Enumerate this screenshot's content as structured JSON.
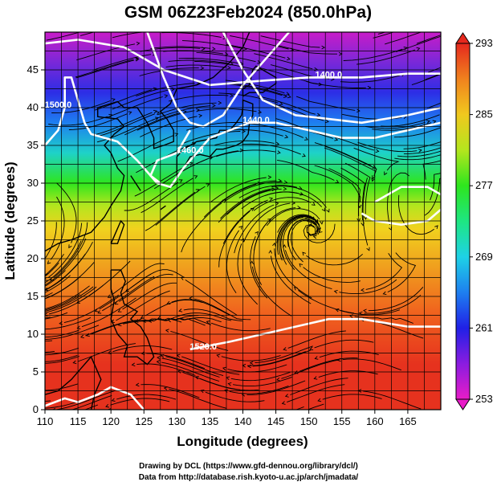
{
  "chart_data": {
    "type": "heatmap",
    "title": "GSM 06Z23Feb2024 (850.0hPa)",
    "xlabel": "Longitude (degrees)",
    "ylabel": "Latitude  (degrees)",
    "xlim": [
      110,
      170
    ],
    "ylim": [
      0,
      50
    ],
    "xticks": [
      110,
      115,
      120,
      125,
      130,
      135,
      140,
      145,
      150,
      155,
      160,
      165
    ],
    "yticks": [
      0,
      5,
      10,
      15,
      20,
      25,
      30,
      35,
      40,
      45
    ],
    "grid": true,
    "colorbar": {
      "range": [
        253,
        293
      ],
      "labels": [
        253,
        261,
        269,
        277,
        285,
        293
      ],
      "colors": [
        "#e81cc8",
        "#7a1ce0",
        "#1e1ee6",
        "#1e7ff0",
        "#1ed2e6",
        "#1ee682",
        "#2ee61e",
        "#a8e61e",
        "#f0e61e",
        "#f0aa1e",
        "#f0641e",
        "#e6281e"
      ],
      "position": "right"
    },
    "contours": [
      {
        "label": "1400.0",
        "lon": 153,
        "lat": 44
      },
      {
        "label": "1440.0",
        "lon": 142,
        "lat": 38
      },
      {
        "label": "1460.0",
        "lon": 132,
        "lat": 34
      },
      {
        "label": "1500.0",
        "lon": 112,
        "lat": 40
      },
      {
        "label": "1520.0",
        "lon": 134,
        "lat": 8
      }
    ],
    "temperature_bands": [
      {
        "lat": 50,
        "value": 253
      },
      {
        "lat": 45,
        "value": 257
      },
      {
        "lat": 40,
        "value": 262
      },
      {
        "lat": 35,
        "value": 268
      },
      {
        "lat": 30,
        "value": 276
      },
      {
        "lat": 25,
        "value": 282
      },
      {
        "lat": 20,
        "value": 285
      },
      {
        "lat": 15,
        "value": 288
      },
      {
        "lat": 10,
        "value": 289
      },
      {
        "lat": 5,
        "value": 290
      },
      {
        "lat": 0,
        "value": 291
      }
    ]
  },
  "credits": {
    "line1": "Drawing by DCL (https://www.gfd-dennou.org/library/dcl/)",
    "line2": "Data from http://database.rish.kyoto-u.ac.jp/arch/jmadata/"
  }
}
